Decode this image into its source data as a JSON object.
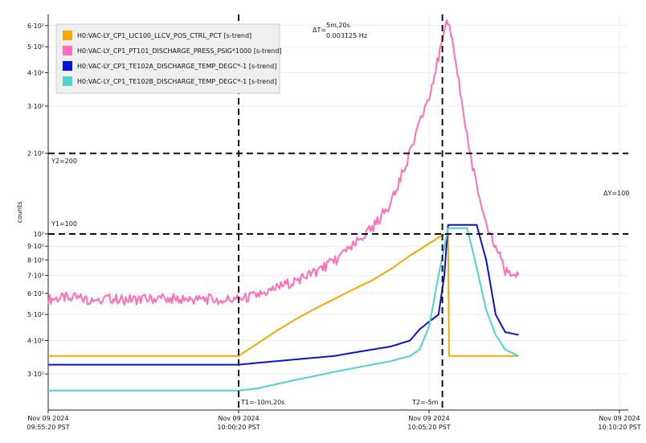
{
  "chart_data": {
    "type": "line",
    "ylabel": "counts",
    "yscale": "log",
    "ylim": [
      22,
      660
    ],
    "grid": true,
    "legend_position": "top-left",
    "x_ticks": [
      {
        "t": 0,
        "line1": "Nov 09 2024",
        "line2": "09:55:20 PST"
      },
      {
        "t": 10,
        "line1": "Nov 09 2024",
        "line2": "10:00:20 PST"
      },
      {
        "t": 20,
        "line1": "Nov 09 2024",
        "line2": "10:05:20 PST"
      },
      {
        "t": 30,
        "line1": "Nov 09 2024",
        "line2": "10:10:20 PST"
      }
    ],
    "x_unit_note": "minutes after 09:55:20 PST",
    "y_ticks": [
      {
        "value": 30,
        "label": "3·10¹"
      },
      {
        "value": 40,
        "label": "4·10¹"
      },
      {
        "value": 50,
        "label": "5·10¹"
      },
      {
        "value": 60,
        "label": "6·10¹"
      },
      {
        "value": 70,
        "label": "7·10¹"
      },
      {
        "value": 80,
        "label": "8·10¹"
      },
      {
        "value": 90,
        "label": "9·10¹"
      },
      {
        "value": 100,
        "label": "10²"
      },
      {
        "value": 200,
        "label": "2·10²"
      },
      {
        "value": 300,
        "label": "3·10²"
      },
      {
        "value": 400,
        "label": "4·10²"
      },
      {
        "value": 500,
        "label": "5·10²"
      },
      {
        "value": 600,
        "label": "6·10²"
      }
    ],
    "series": [
      {
        "name": "H0:VAC-LY_CP1_LIC100_LLCV_POS_CTRL_PCT [s-trend]",
        "color": "#f5a800",
        "points": [
          [
            0,
            35
          ],
          [
            10,
            35
          ],
          [
            10.5,
            37
          ],
          [
            11,
            39
          ],
          [
            12,
            43.5
          ],
          [
            13,
            48
          ],
          [
            14,
            52.5
          ],
          [
            15,
            57
          ],
          [
            16,
            62
          ],
          [
            17,
            67
          ],
          [
            18,
            74
          ],
          [
            19,
            83
          ],
          [
            20,
            92
          ],
          [
            20.7,
            99
          ],
          [
            21.0,
            100
          ],
          [
            21.05,
            35
          ],
          [
            22,
            35
          ],
          [
            23,
            35
          ],
          [
            24,
            35
          ],
          [
            24.7,
            35
          ]
        ]
      },
      {
        "name": "H0:VAC-LY_CP1_PT101_DISCHARGE_PRESS_PSIG*1000 [s-trend]",
        "color": "#ff6eb8",
        "points": [
          [
            0,
            57
          ],
          [
            1,
            58
          ],
          [
            2,
            57
          ],
          [
            3,
            57.5
          ],
          [
            4,
            57
          ],
          [
            5,
            57
          ],
          [
            6,
            57.5
          ],
          [
            7,
            57
          ],
          [
            8,
            57
          ],
          [
            9,
            57
          ],
          [
            10,
            57
          ],
          [
            11,
            59
          ],
          [
            12,
            63
          ],
          [
            13,
            67
          ],
          [
            14,
            72
          ],
          [
            15,
            79
          ],
          [
            16,
            90
          ],
          [
            17,
            105
          ],
          [
            18,
            130
          ],
          [
            19,
            200
          ],
          [
            20,
            330
          ],
          [
            21,
            630
          ],
          [
            21.5,
            400
          ],
          [
            22,
            230
          ],
          [
            22.5,
            150
          ],
          [
            23,
            110
          ],
          [
            23.5,
            90
          ],
          [
            24,
            73
          ],
          [
            24.7,
            70
          ]
        ]
      },
      {
        "name": "H0:VAC-LY_CP1_TE102A_DISCHARGE_TEMP_DEGC*-1 [s-trend]",
        "color": "#0a12d4",
        "points": [
          [
            0,
            32.5
          ],
          [
            2,
            32.5
          ],
          [
            4,
            32.5
          ],
          [
            6,
            32.5
          ],
          [
            8,
            32.5
          ],
          [
            10,
            32.5
          ],
          [
            11,
            33
          ],
          [
            12,
            33.5
          ],
          [
            13,
            34
          ],
          [
            14,
            34.5
          ],
          [
            15,
            35
          ],
          [
            16,
            36
          ],
          [
            17,
            37
          ],
          [
            18,
            38
          ],
          [
            19,
            40
          ],
          [
            19.5,
            44
          ],
          [
            20,
            47
          ],
          [
            20.5,
            50
          ],
          [
            20.8,
            70
          ],
          [
            21,
            108
          ],
          [
            22,
            108
          ],
          [
            22.5,
            108
          ],
          [
            23,
            80
          ],
          [
            23.5,
            50
          ],
          [
            24,
            43
          ],
          [
            24.7,
            42
          ]
        ]
      },
      {
        "name": "H0:VAC-LY_CP1_TE102B_DISCHARGE_TEMP_DEGC*-1 [s-trend]",
        "color": "#4dd2cf",
        "points": [
          [
            0,
            26
          ],
          [
            2,
            26
          ],
          [
            4,
            26
          ],
          [
            6,
            26
          ],
          [
            8,
            26
          ],
          [
            10,
            26
          ],
          [
            11,
            26.5
          ],
          [
            12,
            27.5
          ],
          [
            13,
            28.5
          ],
          [
            14,
            29.5
          ],
          [
            15,
            30.5
          ],
          [
            16,
            31.5
          ],
          [
            17,
            32.5
          ],
          [
            18,
            33.5
          ],
          [
            19,
            35
          ],
          [
            19.5,
            37
          ],
          [
            20,
            45
          ],
          [
            20.5,
            70
          ],
          [
            21,
            105
          ],
          [
            22,
            105
          ],
          [
            22.5,
            75
          ],
          [
            23,
            52
          ],
          [
            23.5,
            42
          ],
          [
            24,
            37
          ],
          [
            24.7,
            35
          ]
        ]
      }
    ],
    "annotations": {
      "t1_label": "T1=-10m,20s",
      "t2_label": "T2=-5m",
      "delta_t_prefix": "ΔT=",
      "delta_t_value": "5m,20s",
      "delta_t_freq": "0.003125 Hz",
      "y2_label": "Y2=200",
      "y1_label": "Y1=100",
      "delta_y_label": "ΔY=100"
    },
    "cursors": {
      "t1": 10,
      "t2": 20.7,
      "y1": 100,
      "y2": 200
    }
  }
}
